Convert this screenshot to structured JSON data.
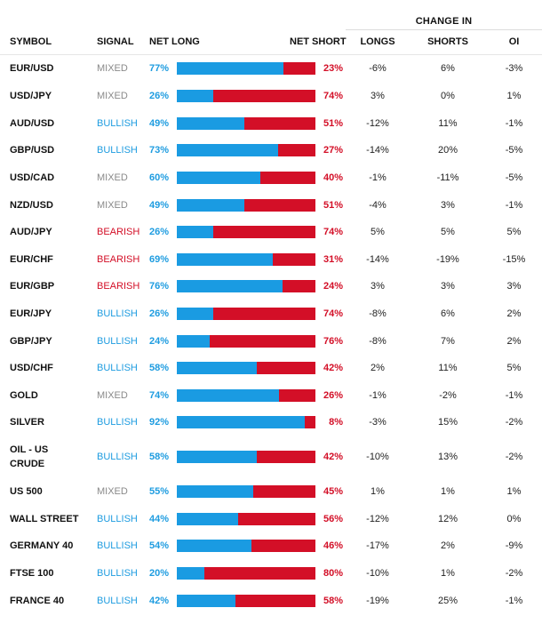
{
  "header": {
    "change_in": "CHANGE IN",
    "symbol": "SYMBOL",
    "signal": "SIGNAL",
    "net_long": "NET LONG",
    "net_short": "NET SHORT",
    "longs": "LONGS",
    "shorts": "SHORTS",
    "oi": "OI"
  },
  "colors": {
    "long": "#1a9be2",
    "short": "#d30f27",
    "mixed": "#8a8a8a"
  },
  "rows": [
    {
      "symbol": "EUR/USD",
      "signal": "MIXED",
      "net_long": "77%",
      "net_short": "23%",
      "long_fraction": 0.77,
      "longs": "-6%",
      "shorts": "6%",
      "oi": "-3%"
    },
    {
      "symbol": "USD/JPY",
      "signal": "MIXED",
      "net_long": "26%",
      "net_short": "74%",
      "long_fraction": 0.26,
      "longs": "3%",
      "shorts": "0%",
      "oi": "1%"
    },
    {
      "symbol": "AUD/USD",
      "signal": "BULLISH",
      "net_long": "49%",
      "net_short": "51%",
      "long_fraction": 0.49,
      "longs": "-12%",
      "shorts": "11%",
      "oi": "-1%"
    },
    {
      "symbol": "GBP/USD",
      "signal": "BULLISH",
      "net_long": "73%",
      "net_short": "27%",
      "long_fraction": 0.73,
      "longs": "-14%",
      "shorts": "20%",
      "oi": "-5%"
    },
    {
      "symbol": "USD/CAD",
      "signal": "MIXED",
      "net_long": "60%",
      "net_short": "40%",
      "long_fraction": 0.6,
      "longs": "-1%",
      "shorts": "-11%",
      "oi": "-5%"
    },
    {
      "symbol": "NZD/USD",
      "signal": "MIXED",
      "net_long": "49%",
      "net_short": "51%",
      "long_fraction": 0.49,
      "longs": "-4%",
      "shorts": "3%",
      "oi": "-1%"
    },
    {
      "symbol": "AUD/JPY",
      "signal": "BEARISH",
      "net_long": "26%",
      "net_short": "74%",
      "long_fraction": 0.26,
      "longs": "5%",
      "shorts": "5%",
      "oi": "5%"
    },
    {
      "symbol": "EUR/CHF",
      "signal": "BEARISH",
      "net_long": "69%",
      "net_short": "31%",
      "long_fraction": 0.69,
      "longs": "-14%",
      "shorts": "-19%",
      "oi": "-15%"
    },
    {
      "symbol": "EUR/GBP",
      "signal": "BEARISH",
      "net_long": "76%",
      "net_short": "24%",
      "long_fraction": 0.76,
      "longs": "3%",
      "shorts": "3%",
      "oi": "3%"
    },
    {
      "symbol": "EUR/JPY",
      "signal": "BULLISH",
      "net_long": "26%",
      "net_short": "74%",
      "long_fraction": 0.26,
      "longs": "-8%",
      "shorts": "6%",
      "oi": "2%"
    },
    {
      "symbol": "GBP/JPY",
      "signal": "BULLISH",
      "net_long": "24%",
      "net_short": "76%",
      "long_fraction": 0.24,
      "longs": "-8%",
      "shorts": "7%",
      "oi": "2%"
    },
    {
      "symbol": "USD/CHF",
      "signal": "BULLISH",
      "net_long": "58%",
      "net_short": "42%",
      "long_fraction": 0.58,
      "longs": "2%",
      "shorts": "11%",
      "oi": "5%"
    },
    {
      "symbol": "GOLD",
      "signal": "MIXED",
      "net_long": "74%",
      "net_short": "26%",
      "long_fraction": 0.74,
      "longs": "-1%",
      "shorts": "-2%",
      "oi": "-1%"
    },
    {
      "symbol": "SILVER",
      "signal": "BULLISH",
      "net_long": "92%",
      "net_short": "8%",
      "long_fraction": 0.92,
      "longs": "-3%",
      "shorts": "15%",
      "oi": "-2%"
    },
    {
      "symbol": "OIL - US CRUDE",
      "signal": "BULLISH",
      "net_long": "58%",
      "net_short": "42%",
      "long_fraction": 0.58,
      "longs": "-10%",
      "shorts": "13%",
      "oi": "-2%"
    },
    {
      "symbol": "US 500",
      "signal": "MIXED",
      "net_long": "55%",
      "net_short": "45%",
      "long_fraction": 0.55,
      "longs": "1%",
      "shorts": "1%",
      "oi": "1%"
    },
    {
      "symbol": "WALL STREET",
      "signal": "BULLISH",
      "net_long": "44%",
      "net_short": "56%",
      "long_fraction": 0.44,
      "longs": "-12%",
      "shorts": "12%",
      "oi": "0%"
    },
    {
      "symbol": "GERMANY 40",
      "signal": "BULLISH",
      "net_long": "54%",
      "net_short": "46%",
      "long_fraction": 0.54,
      "longs": "-17%",
      "shorts": "2%",
      "oi": "-9%"
    },
    {
      "symbol": "FTSE 100",
      "signal": "BULLISH",
      "net_long": "20%",
      "net_short": "80%",
      "long_fraction": 0.2,
      "longs": "-10%",
      "shorts": "1%",
      "oi": "-2%"
    },
    {
      "symbol": "FRANCE 40",
      "signal": "BULLISH",
      "net_long": "42%",
      "net_short": "58%",
      "long_fraction": 0.42,
      "longs": "-19%",
      "shorts": "25%",
      "oi": "-1%"
    }
  ]
}
